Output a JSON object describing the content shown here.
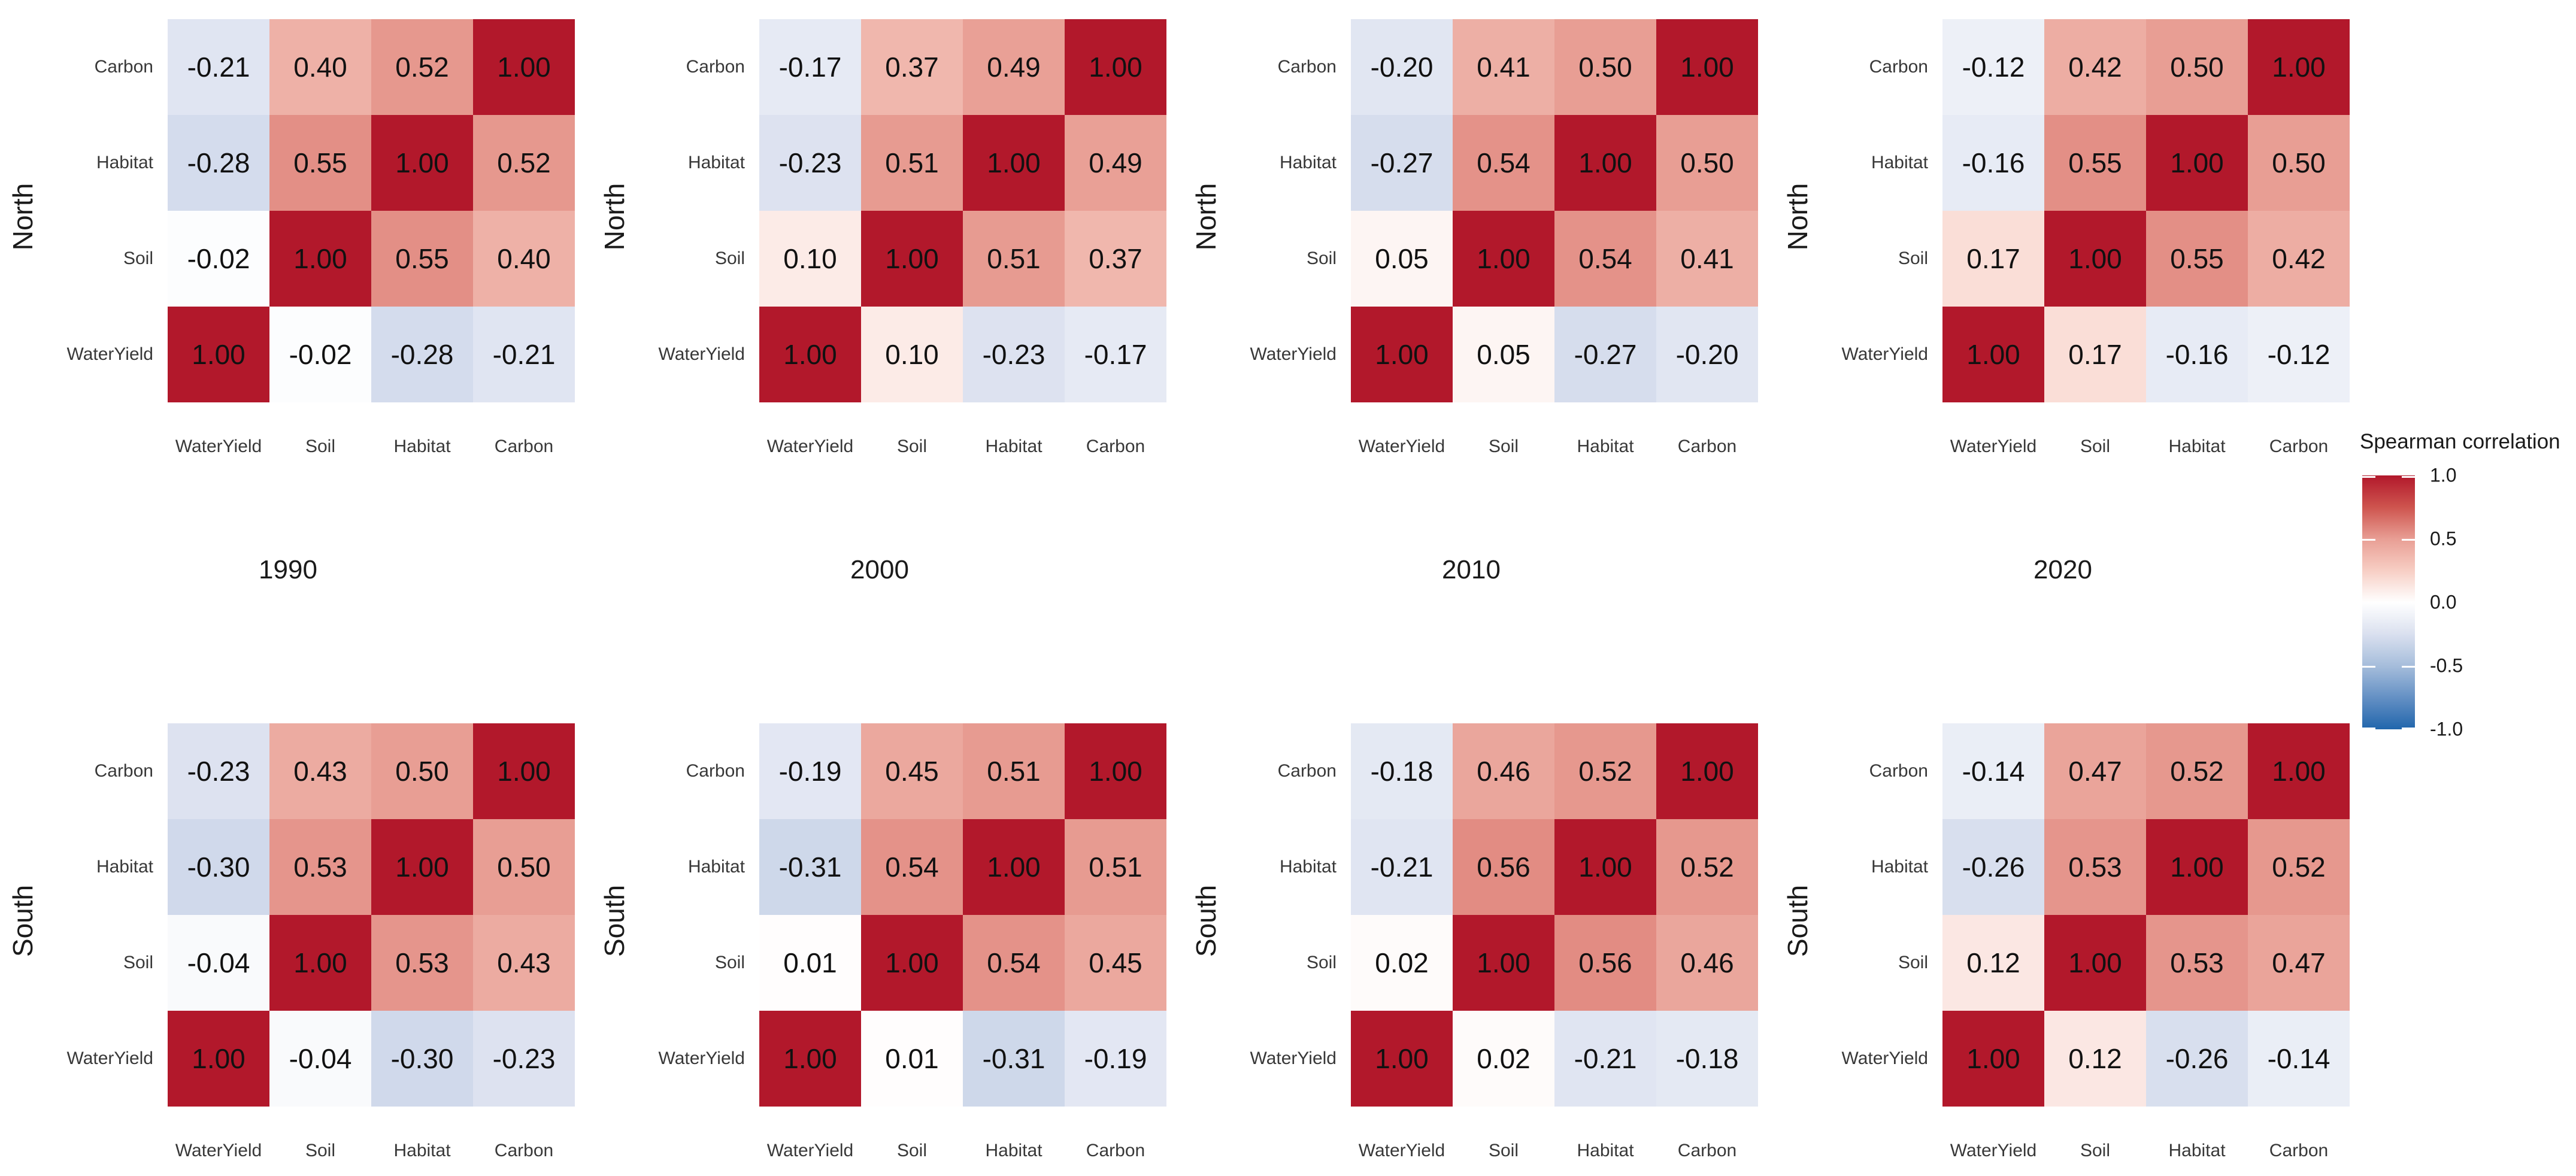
{
  "facets": {
    "row_labels": [
      "North",
      "South"
    ],
    "col_labels": [
      "1990",
      "2000",
      "2010",
      "2020"
    ]
  },
  "axes": {
    "x_categories": [
      "WaterYield",
      "Soil",
      "Habitat",
      "Carbon"
    ],
    "y_categories_top_to_bottom": [
      "Carbon",
      "Habitat",
      "Soil",
      "WaterYield"
    ]
  },
  "legend": {
    "title": "Spearman correlation",
    "tick_labels": [
      "1.0",
      "0.5",
      "0.0",
      "-0.5",
      "-1.0"
    ],
    "tick_values": [
      1.0,
      0.5,
      0.0,
      -0.5,
      -1.0
    ],
    "color_high": "#B2182B",
    "color_mid": "#FFFFFF",
    "color_low": "#2166AC"
  },
  "chart_data": [
    {
      "type": "heatmap",
      "facet_row": "North",
      "facet_col": "1990",
      "columns": [
        "WaterYield",
        "Soil",
        "Habitat",
        "Carbon"
      ],
      "rows_top_to_bottom": [
        "Carbon",
        "Habitat",
        "Soil",
        "WaterYield"
      ],
      "values": [
        [
          -0.21,
          0.4,
          0.52,
          1.0
        ],
        [
          -0.28,
          0.55,
          1.0,
          0.52
        ],
        [
          -0.02,
          1.0,
          0.55,
          0.4
        ],
        [
          1.0,
          -0.02,
          -0.28,
          -0.21
        ]
      ],
      "value_format": "0.00",
      "colormap": "RdBu",
      "domain": [
        -1,
        1
      ]
    },
    {
      "type": "heatmap",
      "facet_row": "North",
      "facet_col": "2000",
      "columns": [
        "WaterYield",
        "Soil",
        "Habitat",
        "Carbon"
      ],
      "rows_top_to_bottom": [
        "Carbon",
        "Habitat",
        "Soil",
        "WaterYield"
      ],
      "values": [
        [
          -0.17,
          0.37,
          0.49,
          1.0
        ],
        [
          -0.23,
          0.51,
          1.0,
          0.49
        ],
        [
          0.1,
          1.0,
          0.51,
          0.37
        ],
        [
          1.0,
          0.1,
          -0.23,
          -0.17
        ]
      ],
      "value_format": "0.00",
      "colormap": "RdBu",
      "domain": [
        -1,
        1
      ]
    },
    {
      "type": "heatmap",
      "facet_row": "North",
      "facet_col": "2010",
      "columns": [
        "WaterYield",
        "Soil",
        "Habitat",
        "Carbon"
      ],
      "rows_top_to_bottom": [
        "Carbon",
        "Habitat",
        "Soil",
        "WaterYield"
      ],
      "values": [
        [
          -0.2,
          0.41,
          0.5,
          1.0
        ],
        [
          -0.27,
          0.54,
          1.0,
          0.5
        ],
        [
          0.05,
          1.0,
          0.54,
          0.41
        ],
        [
          1.0,
          0.05,
          -0.27,
          -0.2
        ]
      ],
      "value_format": "0.00",
      "colormap": "RdBu",
      "domain": [
        -1,
        1
      ]
    },
    {
      "type": "heatmap",
      "facet_row": "North",
      "facet_col": "2020",
      "columns": [
        "WaterYield",
        "Soil",
        "Habitat",
        "Carbon"
      ],
      "rows_top_to_bottom": [
        "Carbon",
        "Habitat",
        "Soil",
        "WaterYield"
      ],
      "values": [
        [
          -0.12,
          0.42,
          0.5,
          1.0
        ],
        [
          -0.16,
          0.55,
          1.0,
          0.5
        ],
        [
          0.17,
          1.0,
          0.55,
          0.42
        ],
        [
          1.0,
          0.17,
          -0.16,
          -0.12
        ]
      ],
      "value_format": "0.00",
      "colormap": "RdBu",
      "domain": [
        -1,
        1
      ]
    },
    {
      "type": "heatmap",
      "facet_row": "South",
      "facet_col": "1990",
      "columns": [
        "WaterYield",
        "Soil",
        "Habitat",
        "Carbon"
      ],
      "rows_top_to_bottom": [
        "Carbon",
        "Habitat",
        "Soil",
        "WaterYield"
      ],
      "values": [
        [
          -0.23,
          0.43,
          0.5,
          1.0
        ],
        [
          -0.3,
          0.53,
          1.0,
          0.5
        ],
        [
          -0.04,
          1.0,
          0.53,
          0.43
        ],
        [
          1.0,
          -0.04,
          -0.3,
          -0.23
        ]
      ],
      "value_format": "0.00",
      "colormap": "RdBu",
      "domain": [
        -1,
        1
      ]
    },
    {
      "type": "heatmap",
      "facet_row": "South",
      "facet_col": "2000",
      "columns": [
        "WaterYield",
        "Soil",
        "Habitat",
        "Carbon"
      ],
      "rows_top_to_bottom": [
        "Carbon",
        "Habitat",
        "Soil",
        "WaterYield"
      ],
      "values": [
        [
          -0.19,
          0.45,
          0.51,
          1.0
        ],
        [
          -0.31,
          0.54,
          1.0,
          0.51
        ],
        [
          0.01,
          1.0,
          0.54,
          0.45
        ],
        [
          1.0,
          0.01,
          -0.31,
          -0.19
        ]
      ],
      "value_format": "0.00",
      "colormap": "RdBu",
      "domain": [
        -1,
        1
      ]
    },
    {
      "type": "heatmap",
      "facet_row": "South",
      "facet_col": "2010",
      "columns": [
        "WaterYield",
        "Soil",
        "Habitat",
        "Carbon"
      ],
      "rows_top_to_bottom": [
        "Carbon",
        "Habitat",
        "Soil",
        "WaterYield"
      ],
      "values": [
        [
          -0.18,
          0.46,
          0.52,
          1.0
        ],
        [
          -0.21,
          0.56,
          1.0,
          0.52
        ],
        [
          0.02,
          1.0,
          0.56,
          0.46
        ],
        [
          1.0,
          0.02,
          -0.21,
          -0.18
        ]
      ],
      "value_format": "0.00",
      "colormap": "RdBu",
      "domain": [
        -1,
        1
      ]
    },
    {
      "type": "heatmap",
      "facet_row": "South",
      "facet_col": "2020",
      "columns": [
        "WaterYield",
        "Soil",
        "Habitat",
        "Carbon"
      ],
      "rows_top_to_bottom": [
        "Carbon",
        "Habitat",
        "Soil",
        "WaterYield"
      ],
      "values": [
        [
          -0.14,
          0.47,
          0.52,
          1.0
        ],
        [
          -0.26,
          0.53,
          1.0,
          0.52
        ],
        [
          0.12,
          1.0,
          0.53,
          0.47
        ],
        [
          1.0,
          0.12,
          -0.26,
          -0.14
        ]
      ],
      "value_format": "0.00",
      "colormap": "RdBu",
      "domain": [
        -1,
        1
      ]
    }
  ]
}
